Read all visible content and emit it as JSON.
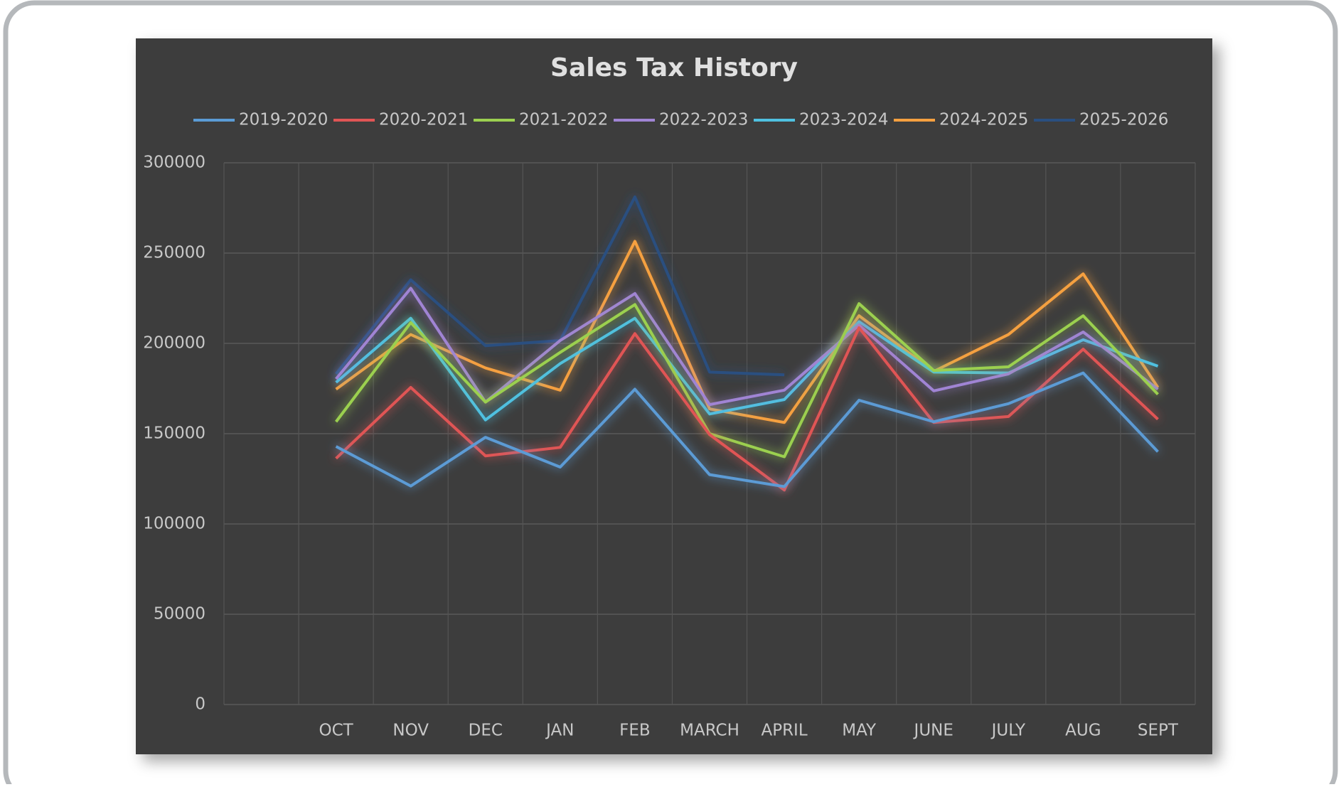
{
  "chart_data": {
    "type": "line",
    "title": "Sales Tax History",
    "categories": [
      null,
      "OCT",
      "NOV",
      "DEC",
      "JAN",
      "FEB",
      "MARCH",
      "APRIL",
      "MAY",
      "JUNE",
      "JULY",
      "AUG",
      "SEPT"
    ],
    "series": [
      {
        "name": "2019-2020",
        "color": "#5b9bd5",
        "values": [
          null,
          142900,
          121000,
          148000,
          131500,
          174600,
          127300,
          120700,
          168500,
          156600,
          166600,
          183600,
          140000
        ]
      },
      {
        "name": "2020-2021",
        "color": "#e05555",
        "values": [
          null,
          136300,
          175600,
          137700,
          142400,
          205400,
          149500,
          118800,
          208700,
          156200,
          159500,
          196800,
          158000
        ]
      },
      {
        "name": "2021-2022",
        "color": "#9bd050",
        "values": [
          null,
          156600,
          211500,
          167500,
          195000,
          221500,
          150000,
          137200,
          222000,
          185000,
          187000,
          215300,
          171800
        ]
      },
      {
        "name": "2022-2023",
        "color": "#a084d4",
        "values": [
          null,
          180300,
          230500,
          167500,
          201600,
          227600,
          166100,
          174100,
          210100,
          173700,
          183100,
          206300,
          174600
        ]
      },
      {
        "name": "2023-2024",
        "color": "#4fc0e0",
        "values": [
          null,
          178400,
          213900,
          157600,
          188800,
          213900,
          160900,
          168900,
          212000,
          184100,
          183600,
          202000,
          187400
        ]
      },
      {
        "name": "2024-2025",
        "color": "#f5a040",
        "values": [
          null,
          174600,
          204900,
          186400,
          174100,
          256500,
          163700,
          156200,
          215300,
          184500,
          204900,
          238500,
          175600
        ]
      },
      {
        "name": "2025-2026",
        "color": "#2a4f80",
        "values": [
          null,
          183100,
          235200,
          198700,
          201600,
          281100,
          184100,
          182600,
          null,
          null,
          null,
          null,
          null
        ]
      }
    ],
    "ylim": [
      0,
      300000
    ],
    "yticks": [
      0,
      50000,
      100000,
      150000,
      200000,
      250000,
      300000
    ],
    "grid": true,
    "legend": "top"
  }
}
